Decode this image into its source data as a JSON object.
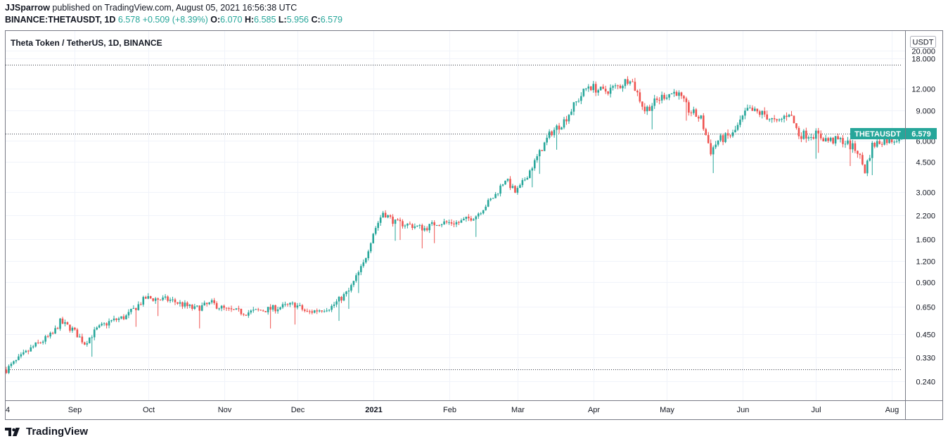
{
  "header": {
    "author": "JJSparrow",
    "published_text": " published on TradingView.com, August 05, 2021 16:56:38 UTC",
    "symbol": "BINANCE:THETAUSDT, 1D",
    "last": "6.578",
    "change": "+0.509 (+8.39%)",
    "o_label": "O:",
    "o_value": "6.070",
    "h_label": "H:",
    "h_value": "6.585",
    "l_label": "L:",
    "l_value": "5.956",
    "c_label": "C:",
    "c_value": "6.579"
  },
  "footer": {
    "brand": "TradingView",
    "logo_icon": "tradingview-logo-icon"
  },
  "colors": {
    "up": "#26a69a",
    "down": "#ef5350",
    "grid": "#f0f3fa",
    "border": "#787b86",
    "dotted": "#363a45"
  },
  "chart_data": {
    "type": "candlestick",
    "title": "Theta Token / TetherUS, 1D, BINANCE",
    "y_scale": "log",
    "y_unit": "USDT",
    "y_ticks": [
      "20.000",
      "18.000",
      "12.000",
      "9.000",
      "6.000",
      "4.500",
      "3.000",
      "2.200",
      "1.600",
      "1.200",
      "0.900",
      "0.650",
      "0.450",
      "0.330",
      "0.240"
    ],
    "x_ticks": [
      "4",
      "Sep",
      "Oct",
      "Nov",
      "Dec",
      "2021",
      "Feb",
      "Mar",
      "Apr",
      "May",
      "Jun",
      "Jul",
      "Aug"
    ],
    "date_range": [
      "2020-08-04",
      "2021-08-05"
    ],
    "price_label": {
      "symbol": "THETAUSDT",
      "value": "6.579"
    },
    "horizontal_lines": [
      16.5,
      6.58,
      0.28
    ],
    "close_path": [
      [
        "2020-08-04",
        0.28
      ],
      [
        "2020-08-15",
        0.38
      ],
      [
        "2020-08-23",
        0.45
      ],
      [
        "2020-08-26",
        0.53
      ],
      [
        "2020-08-31",
        0.48
      ],
      [
        "2020-09-05",
        0.4
      ],
      [
        "2020-09-10",
        0.48
      ],
      [
        "2020-09-15",
        0.53
      ],
      [
        "2020-09-22",
        0.57
      ],
      [
        "2020-09-30",
        0.73
      ],
      [
        "2020-10-10",
        0.71
      ],
      [
        "2020-10-20",
        0.63
      ],
      [
        "2020-10-27",
        0.68
      ],
      [
        "2020-11-02",
        0.62
      ],
      [
        "2020-11-10",
        0.6
      ],
      [
        "2020-11-20",
        0.63
      ],
      [
        "2020-11-30",
        0.67
      ],
      [
        "2020-12-05",
        0.6
      ],
      [
        "2020-12-15",
        0.65
      ],
      [
        "2020-12-22",
        0.8
      ],
      [
        "2020-12-28",
        1.15
      ],
      [
        "2021-01-01",
        1.75
      ],
      [
        "2021-01-05",
        2.3
      ],
      [
        "2021-01-10",
        2.0
      ],
      [
        "2021-01-15",
        1.95
      ],
      [
        "2021-01-22",
        1.85
      ],
      [
        "2021-01-27",
        2.0
      ],
      [
        "2021-02-05",
        2.0
      ],
      [
        "2021-02-12",
        2.2
      ],
      [
        "2021-02-20",
        2.9
      ],
      [
        "2021-02-24",
        3.6
      ],
      [
        "2021-02-28",
        3.0
      ],
      [
        "2021-03-02",
        3.2
      ],
      [
        "2021-03-08",
        4.5
      ],
      [
        "2021-03-14",
        6.5
      ],
      [
        "2021-03-20",
        7.8
      ],
      [
        "2021-03-26",
        10.5
      ],
      [
        "2021-03-30",
        12.5
      ],
      [
        "2021-04-05",
        11.5
      ],
      [
        "2021-04-12",
        12.5
      ],
      [
        "2021-04-16",
        14.0
      ],
      [
        "2021-04-22",
        9.0
      ],
      [
        "2021-04-30",
        11.0
      ],
      [
        "2021-05-05",
        11.5
      ],
      [
        "2021-05-10",
        9.0
      ],
      [
        "2021-05-15",
        8.0
      ],
      [
        "2021-05-19",
        5.2
      ],
      [
        "2021-05-22",
        6.0
      ],
      [
        "2021-05-28",
        6.5
      ],
      [
        "2021-06-03",
        9.0
      ],
      [
        "2021-06-10",
        8.5
      ],
      [
        "2021-06-15",
        7.5
      ],
      [
        "2021-06-20",
        8.8
      ],
      [
        "2021-06-24",
        6.5
      ],
      [
        "2021-07-01",
        6.5
      ],
      [
        "2021-07-06",
        6.0
      ],
      [
        "2021-07-12",
        6.0
      ],
      [
        "2021-07-18",
        5.2
      ],
      [
        "2021-07-21",
        4.0
      ],
      [
        "2021-07-24",
        5.6
      ],
      [
        "2021-07-28",
        6.0
      ],
      [
        "2021-08-02",
        6.1
      ],
      [
        "2021-08-05",
        6.579
      ]
    ]
  }
}
